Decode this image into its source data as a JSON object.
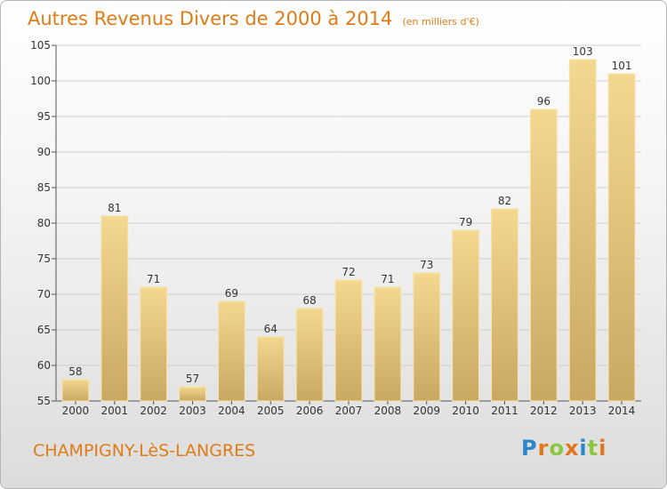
{
  "chart_data": {
    "type": "bar",
    "title": "Autres Revenus Divers de 2000 à 2014",
    "subtitle": "(en milliers d'€)",
    "categories": [
      "2000",
      "2001",
      "2002",
      "2003",
      "2004",
      "2005",
      "2006",
      "2007",
      "2008",
      "2009",
      "2010",
      "2011",
      "2012",
      "2013",
      "2014"
    ],
    "values": [
      58,
      81,
      71,
      57,
      69,
      64,
      68,
      72,
      71,
      73,
      79,
      82,
      96,
      103,
      101
    ],
    "ylim": [
      55,
      105
    ],
    "yticks": [
      55,
      60,
      65,
      70,
      75,
      80,
      85,
      90,
      95,
      100,
      105
    ],
    "grid": true,
    "xlabel": "",
    "ylabel": ""
  },
  "footer": {
    "commune": "CHAMPIGNY-LèS-LANGRES",
    "logo_letters": [
      "P",
      "r",
      "o",
      "x",
      "i",
      "t",
      "i"
    ],
    "logo_colors": [
      "#2a86c9",
      "#e2761f",
      "#8cc63e",
      "#e2761f",
      "#2a86c9",
      "#8cc63e",
      "#e2761f"
    ]
  },
  "colors": {
    "accent": "#e07b16",
    "bar_top": "#f4d890",
    "bar_bottom": "#c9a862",
    "bar_edge": "#f7e4ad",
    "grid": "#d0d0d0",
    "axis": "#555555"
  }
}
